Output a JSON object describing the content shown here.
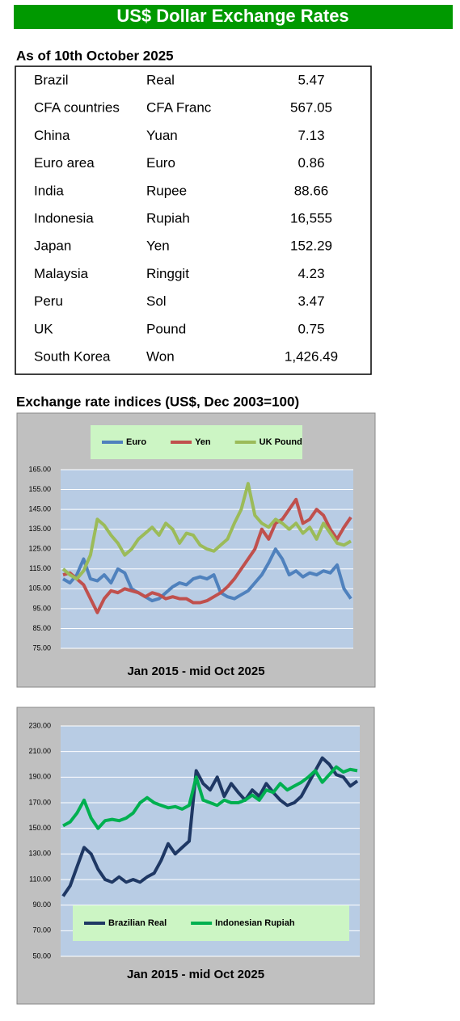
{
  "header": {
    "title": "US$ Dollar Exchange Rates"
  },
  "table": {
    "title": "As of 10th October 2025",
    "rows": [
      [
        "Brazil",
        "Real",
        "5.47"
      ],
      [
        "CFA countries",
        "CFA Franc",
        "567.05"
      ],
      [
        "China",
        "Yuan",
        "7.13"
      ],
      [
        "Euro area",
        "Euro",
        "0.86"
      ],
      [
        "India",
        "Rupee",
        "88.66"
      ],
      [
        "Indonesia",
        "Rupiah",
        "16,555"
      ],
      [
        "Japan",
        "Yen",
        "152.29"
      ],
      [
        "Malaysia",
        "Ringgit",
        "4.23"
      ],
      [
        "Peru",
        "Sol",
        "3.47"
      ],
      [
        "UK",
        "Pound",
        "0.75"
      ],
      [
        "South Korea",
        "Won",
        "1,426.49"
      ]
    ]
  },
  "section_title": "Exchange rate indices (US$, Dec 2003=100)",
  "chart_data": [
    {
      "type": "line",
      "x_label": "Jan 2015 - mid Oct 2025",
      "ylim": [
        75,
        165
      ],
      "yticks": [
        {
          "value": 75,
          "label": "75.00"
        },
        {
          "value": 85,
          "label": "85.00"
        },
        {
          "value": 95,
          "label": "95.00"
        },
        {
          "value": 105,
          "label": "105.00"
        },
        {
          "value": 115,
          "label": "115.00"
        },
        {
          "value": 125,
          "label": "125.00"
        },
        {
          "value": 135,
          "label": "135.00"
        },
        {
          "value": 145,
          "label": "145.00"
        },
        {
          "value": 155,
          "label": "155.00"
        },
        {
          "value": 165,
          "label": "165.00"
        }
      ],
      "legend": "top",
      "series": [
        {
          "name": "Euro",
          "color": "#4f81bd",
          "values": [
            110,
            108,
            112,
            120,
            110,
            109,
            112,
            108,
            115,
            113,
            105,
            103,
            101,
            99,
            100,
            103,
            106,
            108,
            107,
            110,
            111,
            110,
            112,
            103,
            101,
            100,
            102,
            104,
            108,
            112,
            118,
            125,
            120,
            112,
            114,
            111,
            113,
            112,
            114,
            113,
            117,
            105,
            100
          ]
        },
        {
          "name": "Yen",
          "color": "#c0504d",
          "values": [
            112,
            113,
            110,
            107,
            100,
            93,
            100,
            104,
            103,
            105,
            104,
            103,
            101,
            103,
            102,
            100,
            101,
            100,
            100,
            98,
            98,
            99,
            101,
            103,
            106,
            110,
            115,
            120,
            125,
            135,
            130,
            138,
            140,
            145,
            150,
            138,
            140,
            145,
            142,
            135,
            130,
            136,
            141
          ]
        },
        {
          "name": "UK Pound",
          "color": "#9bbb59",
          "values": [
            115,
            112,
            110,
            114,
            122,
            140,
            137,
            132,
            128,
            122,
            125,
            130,
            133,
            136,
            132,
            138,
            135,
            128,
            133,
            132,
            127,
            125,
            124,
            127,
            130,
            138,
            145,
            158,
            142,
            138,
            136,
            140,
            138,
            135,
            138,
            133,
            136,
            130,
            138,
            133,
            128,
            127,
            129
          ]
        }
      ]
    },
    {
      "type": "line",
      "x_label": "Jan 2015 - mid Oct 2025",
      "ylim": [
        50,
        230
      ],
      "yticks": [
        {
          "value": 50,
          "label": "50.00"
        },
        {
          "value": 70,
          "label": "70.00"
        },
        {
          "value": 90,
          "label": "90.00"
        },
        {
          "value": 110,
          "label": "110.00"
        },
        {
          "value": 130,
          "label": "130.00"
        },
        {
          "value": 150,
          "label": "150.00"
        },
        {
          "value": 170,
          "label": "170.00"
        },
        {
          "value": 190,
          "label": "190.00"
        },
        {
          "value": 210,
          "label": "210.00"
        },
        {
          "value": 230,
          "label": "230.00"
        }
      ],
      "legend": "bottom",
      "series": [
        {
          "name": "Brazilian Real",
          "color": "#1f3864",
          "values": [
            97,
            105,
            120,
            135,
            130,
            118,
            110,
            108,
            112,
            108,
            110,
            108,
            112,
            115,
            125,
            138,
            130,
            135,
            140,
            195,
            185,
            180,
            190,
            175,
            185,
            178,
            172,
            180,
            175,
            185,
            178,
            172,
            168,
            170,
            175,
            185,
            195,
            205,
            200,
            192,
            190,
            183,
            187
          ]
        },
        {
          "name": "Indonesian Rupiah",
          "color": "#00b050",
          "values": [
            152,
            155,
            162,
            172,
            158,
            150,
            156,
            157,
            156,
            158,
            162,
            170,
            174,
            170,
            168,
            166,
            167,
            165,
            168,
            190,
            172,
            170,
            168,
            172,
            170,
            170,
            172,
            176,
            172,
            180,
            178,
            185,
            180,
            183,
            186,
            190,
            195,
            186,
            192,
            198,
            194,
            196,
            195
          ]
        }
      ]
    }
  ]
}
